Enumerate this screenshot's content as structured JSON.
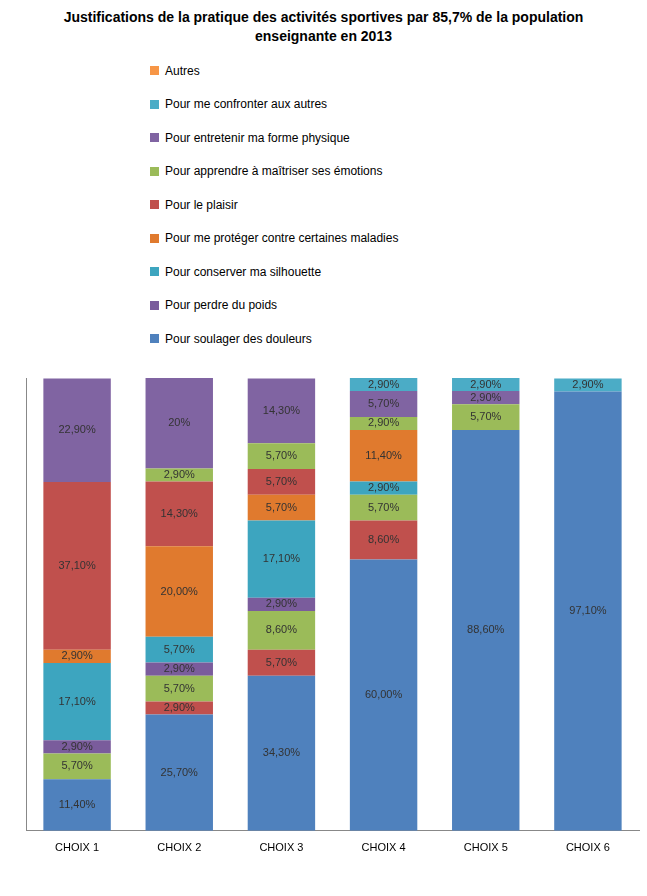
{
  "chart_data": {
    "type": "bar",
    "title": "Justifications de la pratique des activités sportives par 85,7% de la population enseignante en 2013",
    "categories": [
      "CHOIX 1",
      "CHOIX 2",
      "CHOIX 3",
      "CHOIX 4",
      "CHOIX 5",
      "CHOIX 6"
    ],
    "stacked": true,
    "grid": false,
    "legend": "top",
    "tick_labels": "x",
    "data_labels": true,
    "ylim": [
      0,
      100.1
    ],
    "series": [
      {
        "name": "Pour soulager des douleurs",
        "color": "#4f81bd",
        "values": [
          11.4,
          25.7,
          34.3,
          60.0,
          88.6,
          97.1
        ],
        "value_labels": [
          "11,40%",
          "25,70%",
          "34,30%",
          "60,00%",
          "88,60%",
          "97,10%"
        ]
      },
      {
        "name": "Pour le plaisir",
        "color": "#c0504d",
        "values": [
          null,
          2.9,
          5.7,
          8.6,
          null,
          null
        ],
        "value_labels": [
          null,
          "2,90%",
          "5,70%",
          "8,60%",
          null,
          null
        ]
      },
      {
        "name": "Pour apprendre à maîtriser ses émotions",
        "color": "#9bbb59",
        "values": [
          5.7,
          5.7,
          8.6,
          5.7,
          null,
          null
        ],
        "value_labels": [
          "5,70%",
          "5,70%",
          "8,60%",
          "5,70%",
          null,
          null
        ]
      },
      {
        "name": "Pour perdre du poids",
        "color": "#7a5c9c",
        "values": [
          2.9,
          2.9,
          2.9,
          null,
          null,
          null
        ],
        "value_labels": [
          "2,90%",
          "2,90%",
          "2,90%",
          null,
          null,
          null
        ]
      },
      {
        "name": "Pour conserver ma silhouette",
        "color": "#3da5bf",
        "values": [
          17.1,
          5.7,
          17.1,
          2.9,
          null,
          null
        ],
        "value_labels": [
          "17,10%",
          "5,70%",
          "17,10%",
          "2,90%",
          null,
          null
        ]
      },
      {
        "name": "Pour me protéger contre certaines maladies",
        "color": "#e07a2e",
        "values": [
          2.9,
          20.0,
          5.7,
          11.4,
          null,
          null
        ],
        "value_labels": [
          "2,90%",
          "20,00%",
          "5,70%",
          "11,40%",
          null,
          null
        ]
      },
      {
        "name": "Pour le plaisir",
        "color": "#c0504d",
        "values": [
          37.1,
          14.3,
          5.7,
          null,
          null,
          null
        ],
        "value_labels": [
          "37,10%",
          "14,30%",
          "5,70%",
          null,
          null,
          null
        ]
      },
      {
        "name": "Pour apprendre à maîtriser ses émotions",
        "color": "#9bbb59",
        "values": [
          null,
          2.9,
          5.7,
          2.9,
          5.7,
          null
        ],
        "value_labels": [
          null,
          "2,90%",
          "5,70%",
          "2,90%",
          "5,70%",
          null
        ]
      },
      {
        "name": "Pour entretenir ma forme physique",
        "color": "#8064a2",
        "values": [
          22.9,
          20,
          14.3,
          5.7,
          2.9,
          null
        ],
        "value_labels": [
          "22,90%",
          "20%",
          "14,30%",
          "5,70%",
          "2,90%",
          null
        ]
      },
      {
        "name": "Pour me confronter aux autres",
        "color": "#4bacc6",
        "values": [
          null,
          null,
          null,
          2.9,
          2.9,
          2.9
        ],
        "value_labels": [
          null,
          null,
          null,
          "2,90%",
          "2,90%",
          "2,90%"
        ]
      },
      {
        "name": "Autres",
        "color": "#f79646",
        "values": [
          null,
          null,
          null,
          null,
          null,
          null
        ],
        "value_labels": [
          null,
          null,
          null,
          null,
          null,
          null
        ]
      }
    ]
  }
}
